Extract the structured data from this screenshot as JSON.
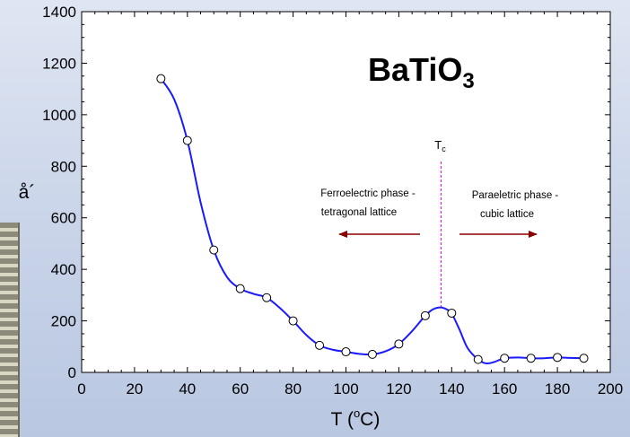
{
  "chart_data": {
    "type": "line",
    "title_main": "BaTiO",
    "title_sub": "3",
    "xlabel_main": "T (",
    "xlabel_sup": "o",
    "xlabel_end": "C)",
    "ylabel": "å´",
    "xlim": [
      0,
      200
    ],
    "ylim": [
      0,
      1400
    ],
    "xticks": [
      0,
      20,
      40,
      60,
      80,
      100,
      120,
      140,
      160,
      180,
      200
    ],
    "yticks": [
      0,
      200,
      400,
      600,
      800,
      1000,
      1200,
      1400
    ],
    "grid": false,
    "series": [
      {
        "color": "#1a1aff",
        "marker": "open-circle",
        "points": [
          {
            "x": 30,
            "y": 1140
          },
          {
            "x": 40,
            "y": 900
          },
          {
            "x": 50,
            "y": 475
          },
          {
            "x": 60,
            "y": 325
          },
          {
            "x": 70,
            "y": 290
          },
          {
            "x": 80,
            "y": 200
          },
          {
            "x": 90,
            "y": 105
          },
          {
            "x": 100,
            "y": 80
          },
          {
            "x": 110,
            "y": 70
          },
          {
            "x": 120,
            "y": 110
          },
          {
            "x": 130,
            "y": 220
          },
          {
            "x": 140,
            "y": 230
          },
          {
            "x": 150,
            "y": 50
          },
          {
            "x": 160,
            "y": 55
          },
          {
            "x": 170,
            "y": 55
          },
          {
            "x": 180,
            "y": 58
          },
          {
            "x": 190,
            "y": 55
          }
        ],
        "curve": [
          {
            "x": 30,
            "y": 1140
          },
          {
            "x": 35,
            "y": 1060
          },
          {
            "x": 40,
            "y": 900
          },
          {
            "x": 45,
            "y": 660
          },
          {
            "x": 50,
            "y": 475
          },
          {
            "x": 55,
            "y": 370
          },
          {
            "x": 60,
            "y": 325
          },
          {
            "x": 65,
            "y": 305
          },
          {
            "x": 70,
            "y": 290
          },
          {
            "x": 75,
            "y": 250
          },
          {
            "x": 80,
            "y": 200
          },
          {
            "x": 85,
            "y": 145
          },
          {
            "x": 90,
            "y": 105
          },
          {
            "x": 95,
            "y": 88
          },
          {
            "x": 100,
            "y": 80
          },
          {
            "x": 105,
            "y": 72
          },
          {
            "x": 110,
            "y": 70
          },
          {
            "x": 115,
            "y": 82
          },
          {
            "x": 120,
            "y": 110
          },
          {
            "x": 125,
            "y": 160
          },
          {
            "x": 130,
            "y": 220
          },
          {
            "x": 133,
            "y": 245
          },
          {
            "x": 136,
            "y": 252
          },
          {
            "x": 139,
            "y": 240
          },
          {
            "x": 140,
            "y": 230
          },
          {
            "x": 143,
            "y": 165
          },
          {
            "x": 146,
            "y": 95
          },
          {
            "x": 150,
            "y": 50
          },
          {
            "x": 153,
            "y": 35
          },
          {
            "x": 156,
            "y": 40
          },
          {
            "x": 160,
            "y": 55
          },
          {
            "x": 165,
            "y": 58
          },
          {
            "x": 170,
            "y": 55
          },
          {
            "x": 175,
            "y": 55
          },
          {
            "x": 180,
            "y": 58
          },
          {
            "x": 185,
            "y": 56
          },
          {
            "x": 190,
            "y": 55
          }
        ]
      }
    ],
    "annotations": {
      "tc_main": "T",
      "tc_sub": "c",
      "tc_x": 136,
      "ferro_line1": "Ferroelectric phase -",
      "ferro_line2": "tetragonal lattice",
      "para_line1": "Paraeletric phase -",
      "para_line2": "cubic lattice",
      "arrow_color": "#8b0000",
      "tc_line_color": "#ff00ff"
    }
  }
}
